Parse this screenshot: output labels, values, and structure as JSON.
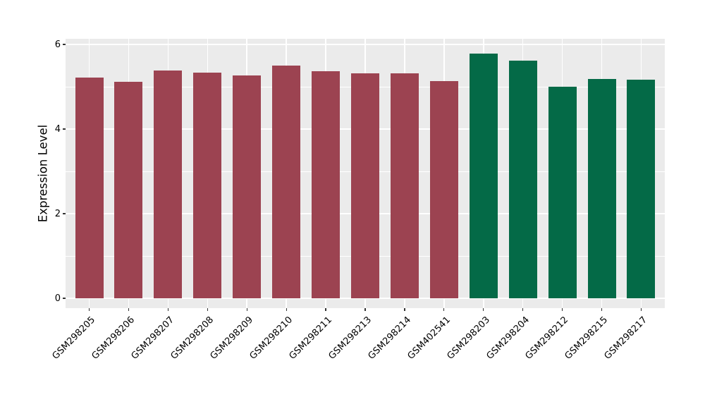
{
  "figure": {
    "background": "#FFFFFF",
    "panel_background": "#EBEBEB",
    "gridline_color": "#FFFFFF",
    "tick_mark_color": "#333333",
    "text_color": "#000000"
  },
  "chart_data": {
    "type": "bar",
    "title": "",
    "xlabel": "",
    "ylabel": "Expression Level",
    "categories": [
      "GSM298205",
      "GSM298206",
      "GSM298207",
      "GSM298208",
      "GSM298209",
      "GSM298210",
      "GSM298211",
      "GSM298213",
      "GSM298214",
      "GSM402541",
      "GSM298203",
      "GSM298204",
      "GSM298212",
      "GSM298215",
      "GSM298217"
    ],
    "values": [
      5.21,
      5.11,
      5.39,
      5.34,
      5.26,
      5.5,
      5.36,
      5.31,
      5.31,
      5.14,
      5.79,
      5.61,
      5.0,
      5.18,
      5.16
    ],
    "bar_colors": [
      "#9C4351",
      "#9C4351",
      "#9C4351",
      "#9C4351",
      "#9C4351",
      "#9C4351",
      "#9C4351",
      "#9C4351",
      "#9C4351",
      "#9C4351",
      "#046A47",
      "#046A47",
      "#046A47",
      "#046A47",
      "#046A47"
    ],
    "group_colors": {
      "left_group": "#9C4351",
      "right_group": "#046A47"
    },
    "ylim": [
      -0.29,
      6.08
    ],
    "yticks_major": [
      0,
      2,
      4,
      6
    ],
    "yticks_minor": [
      1,
      3,
      5
    ],
    "grid": true,
    "legend": "none",
    "x_labels_rotation_deg": 45
  }
}
